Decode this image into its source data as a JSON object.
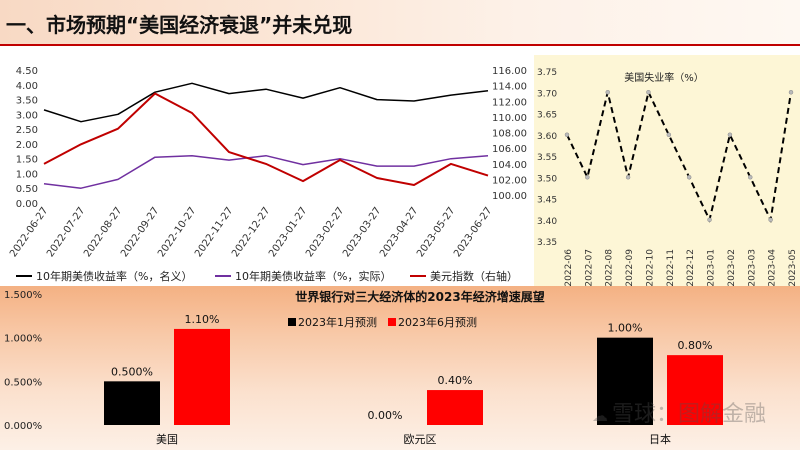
{
  "header": {
    "title": "一、市场预期“美国经济衰退”并未兑现"
  },
  "watermark": {
    "text": "雪球：图解金融",
    "icon": "wechat-icon"
  },
  "colors": {
    "title_rule": "#c00000",
    "black_series": "#000000",
    "purple_series": "#7030a0",
    "red_series": "#c00000",
    "bar_black": "#000000",
    "bar_red": "#ff0000"
  },
  "chart_data": [
    {
      "type": "line",
      "y_left_ticks": [
        "4.50",
        "4.00",
        "3.50",
        "3.00",
        "2.50",
        "2.00",
        "1.50",
        "1.00",
        "0.50",
        "0.00"
      ],
      "y_right_ticks": [
        "116.00",
        "114.00",
        "112.00",
        "110.00",
        "108.00",
        "106.00",
        "104.00",
        "102.00",
        "100.00"
      ],
      "ylim_left": [
        0,
        4.5
      ],
      "ylim_right": [
        99,
        116
      ],
      "x": [
        "2022-06-27",
        "2022-07-27",
        "2022-08-27",
        "2022-09-27",
        "2022-10-27",
        "2022-11-27",
        "2022-12-27",
        "2023-01-27",
        "2023-02-27",
        "2023-03-27",
        "2023-04-27",
        "2023-05-27",
        "2023-06-27"
      ],
      "series": [
        {
          "name": "10年期美债收益率（%，名义）",
          "axis": "left",
          "values": [
            3.15,
            2.75,
            3.0,
            3.75,
            4.05,
            3.7,
            3.85,
            3.55,
            3.9,
            3.5,
            3.45,
            3.65,
            3.8
          ]
        },
        {
          "name": "10年期美债收益率（%，实际）",
          "axis": "left",
          "values": [
            0.65,
            0.5,
            0.8,
            1.55,
            1.6,
            1.45,
            1.6,
            1.3,
            1.5,
            1.25,
            1.25,
            1.5,
            1.6
          ]
        },
        {
          "name": "美元指数（右轴）",
          "axis": "right",
          "values": [
            104.0,
            106.5,
            108.5,
            113.0,
            110.5,
            105.5,
            104.0,
            101.8,
            104.5,
            102.2,
            101.3,
            104.0,
            102.5
          ]
        }
      ],
      "legend": "bottom",
      "grid": false
    },
    {
      "type": "line",
      "title": "美国失业率（%）",
      "x": [
        "2022-06",
        "2022-07",
        "2022-08",
        "2022-09",
        "2022-10",
        "2022-11",
        "2022-12",
        "2023-01",
        "2023-02",
        "2023-03",
        "2023-04",
        "2023-05"
      ],
      "values": [
        3.6,
        3.5,
        3.7,
        3.5,
        3.7,
        3.6,
        3.5,
        3.4,
        3.6,
        3.5,
        3.4,
        3.7
      ],
      "y_ticks": [
        "3.75",
        "3.70",
        "3.65",
        "3.60",
        "3.55",
        "3.50",
        "3.45",
        "3.40",
        "3.35"
      ],
      "ylim": [
        3.35,
        3.75
      ],
      "line_style": "dashed",
      "grid": false
    },
    {
      "type": "bar",
      "title": "世界银行对三大经济体的2023年经济增速展望",
      "categories": [
        "美国",
        "欧元区",
        "日本"
      ],
      "series": [
        {
          "name": "2023年1月预测",
          "values": [
            0.005,
            0.0,
            0.01
          ],
          "labels": [
            "0.500%",
            "0.00%",
            "1.00%"
          ]
        },
        {
          "name": "2023年6月预测",
          "values": [
            0.011,
            0.004,
            0.008
          ],
          "labels": [
            "1.10%",
            "0.40%",
            "0.80%"
          ]
        }
      ],
      "y_ticks": [
        "1.500%",
        "1.000%",
        "0.500%",
        "0.000%"
      ],
      "ylim": [
        0,
        0.015
      ],
      "legend": "top"
    }
  ]
}
